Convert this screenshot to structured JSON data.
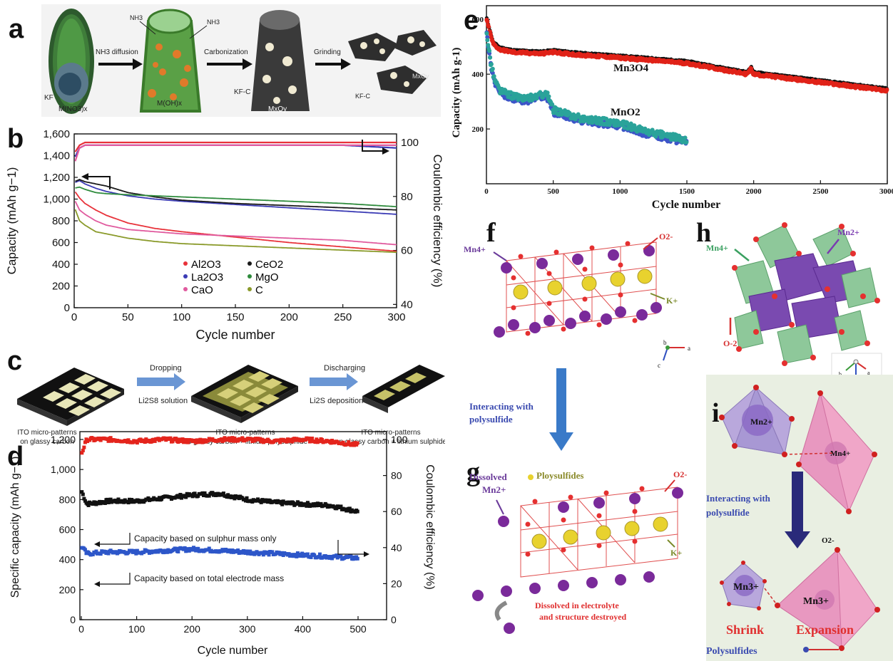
{
  "panel_labels": {
    "a": "a",
    "b": "b",
    "c": "c",
    "d": "d",
    "e": "e",
    "f": "f",
    "g": "g",
    "h": "h",
    "i": "i"
  },
  "colors": {
    "al2o3": "#e8323a",
    "la2o3": "#3b3bb5",
    "cao": "#e05a9e",
    "ceo2": "#1a1a1a",
    "mgo": "#2e8b3c",
    "c": "#8a9a2a",
    "mn3o4_red": "#e02218",
    "mn3o4_black": "#111111",
    "mno2_teal": "#2aa39a",
    "mno2_blue": "#3d55c8",
    "d_red": "#e4241c",
    "d_black": "#111111",
    "d_blue": "#2d56c9"
  },
  "panel_a": {
    "labels": {
      "nh3_diffusion": "NH3 diffusion",
      "carbonization": "Carbonization",
      "grinding": "Grinding",
      "nh3_1": "NH3",
      "nh3_2": "NH3",
      "kf": "KF",
      "mno3": "M(NO3)x",
      "moh": "M(OH)x",
      "kfc": "KF-C",
      "mxoy": "MxOy",
      "kfc2": "KF-C",
      "mox": "MxOy"
    }
  },
  "panel_b": {
    "ylabel_left": "Capacity (mAh g−1)",
    "ylabel_right": "Coulombic efficiency (%)",
    "xlabel": "Cycle number",
    "yticks_left": [
      "1,600",
      "1,400",
      "1,200",
      "1,000",
      "800",
      "600",
      "400",
      "200",
      "0"
    ],
    "yticks_right": [
      "100",
      "80",
      "60",
      "40"
    ],
    "xticks": [
      "0",
      "50",
      "100",
      "150",
      "200",
      "250",
      "300"
    ],
    "legend": [
      "Al2O3",
      "La2O3",
      "CaO",
      "CeO2",
      "MgO",
      "C"
    ]
  },
  "panel_c": {
    "step1": "Dropping",
    "step1_sub": "Li2S8 solution",
    "step2": "Discharging",
    "step2_sub": "Li2S deposition",
    "cap1_a": "ITO micro-patterns",
    "cap1_b": "on glassy carbon",
    "cap2_a": "ITO micro-patterns",
    "cap2_b": "on glassy carbon + lithium polysulphide",
    "cap3_a": "ITO micro-patterns",
    "cap3_b": "on glassy carbon + lithium sulphide"
  },
  "panel_d": {
    "ylabel_left": "Specific capacity (mAh g−1)",
    "ylabel_right": "Coulombic efficiency (%)",
    "xlabel": "Cycle number",
    "yticks_left": [
      "1,200",
      "1,000",
      "800",
      "600",
      "400",
      "200",
      "0"
    ],
    "yticks_right": [
      "100",
      "80",
      "60",
      "40",
      "20",
      "0"
    ],
    "xticks": [
      "0",
      "100",
      "200",
      "300",
      "400",
      "500"
    ],
    "anno1": "Capacity based on sulphur mass only",
    "anno2": "Capacity based on total electrode mass"
  },
  "panel_e": {
    "ylabel": "Capacity (mAh g-1)",
    "xlabel": "Cycle number",
    "yticks": [
      "600",
      "400",
      "200"
    ],
    "xticks": [
      "0",
      "500",
      "1000",
      "1500",
      "2000",
      "2500",
      "3000"
    ],
    "label_mn3o4": "Mn3O4",
    "label_mno2": "MnO2"
  },
  "panel_f": {
    "mn4": "Mn4+",
    "o2": "O2-",
    "k": "K+",
    "axes": {
      "a": "a",
      "b": "b",
      "c": "c"
    }
  },
  "panel_arrow": {
    "text_l1": "Interacting with",
    "text_l2": "polysulfide"
  },
  "panel_g": {
    "dissolved": "Dissolved",
    "mn2": "Mn2+",
    "ploysulfides": "Ploysulfides",
    "o2": "O2-",
    "k": "K+",
    "note_l1": "Dissolved in electrolyte",
    "note_l2": "and structure destroyed"
  },
  "panel_h": {
    "mn4": "Mn4+",
    "mn2": "Mn2+",
    "o2": "O-2",
    "axes": {
      "a": "a",
      "b": "b",
      "c": "c"
    }
  },
  "panel_i": {
    "mn2": "Mn2+",
    "mn4": "Mn4+",
    "text_l1": "Interacting with",
    "text_l2": "polysulfide",
    "o2": "O2-",
    "mn3a": "Mn3+",
    "mn3b": "Mn3+",
    "shrink": "Shrink",
    "expansion": "Expansion",
    "polysulfides": "Polysulfides"
  },
  "chart_data": [
    {
      "panel": "b",
      "type": "line",
      "xlabel": "Cycle number",
      "ylabel": "Capacity (mAh g−1)",
      "ylabel_right": "Coulombic efficiency (%)",
      "xlim": [
        0,
        300
      ],
      "ylim": [
        0,
        1600
      ],
      "ylim_right": [
        40,
        100
      ],
      "x": [
        0,
        5,
        10,
        20,
        30,
        50,
        75,
        100,
        150,
        200,
        250,
        300
      ],
      "series": [
        {
          "name": "Al2O3",
          "values": [
            1080,
            1010,
            960,
            900,
            850,
            780,
            730,
            700,
            650,
            600,
            560,
            520
          ]
        },
        {
          "name": "La2O3",
          "values": [
            1150,
            1170,
            1140,
            1100,
            1070,
            1030,
            1000,
            980,
            950,
            920,
            890,
            860
          ]
        },
        {
          "name": "CaO",
          "values": [
            1000,
            900,
            860,
            800,
            760,
            720,
            700,
            680,
            660,
            640,
            620,
            580
          ]
        },
        {
          "name": "CeO2",
          "values": [
            1160,
            1180,
            1160,
            1140,
            1120,
            1060,
            1020,
            990,
            960,
            940,
            920,
            900
          ]
        },
        {
          "name": "MgO",
          "values": [
            1100,
            1110,
            1090,
            1060,
            1050,
            1040,
            1030,
            1020,
            1000,
            980,
            960,
            930
          ]
        },
        {
          "name": "C",
          "values": [
            930,
            800,
            760,
            700,
            680,
            640,
            610,
            590,
            570,
            550,
            530,
            510
          ]
        }
      ],
      "ce_series": [
        {
          "name": "Al2O3",
          "values": [
            96,
            99,
            100,
            100,
            100,
            100,
            100,
            100,
            100,
            100,
            100,
            100
          ]
        },
        {
          "name": "La2O3",
          "values": [
            94,
            98,
            99,
            99,
            99,
            99,
            99,
            99,
            99,
            99,
            99,
            98
          ]
        },
        {
          "name": "CaO",
          "values": [
            92,
            98,
            99,
            99,
            99,
            99,
            99,
            99,
            99,
            99,
            99,
            99
          ]
        }
      ]
    },
    {
      "panel": "d",
      "type": "scatter",
      "xlabel": "Cycle number",
      "ylabel": "Specific capacity (mAh g−1)",
      "ylabel_right": "Coulombic efficiency (%)",
      "xlim": [
        0,
        500
      ],
      "ylim": [
        0,
        1200
      ],
      "ylim_right": [
        0,
        100
      ],
      "x": [
        0,
        10,
        50,
        100,
        150,
        200,
        250,
        300,
        350,
        400,
        450,
        500
      ],
      "series": [
        {
          "name": "Capacity based on sulphur mass only",
          "values": [
            860,
            770,
            790,
            790,
            810,
            830,
            840,
            800,
            780,
            770,
            760,
            720
          ]
        },
        {
          "name": "Capacity based on total electrode mass",
          "values": [
            490,
            440,
            450,
            450,
            460,
            470,
            460,
            450,
            440,
            430,
            420,
            410
          ]
        }
      ],
      "ce_series": [
        {
          "values": [
            92,
            100,
            100,
            99,
            100,
            99,
            100,
            100,
            99,
            100,
            99,
            97
          ]
        }
      ]
    },
    {
      "panel": "e",
      "type": "scatter",
      "xlabel": "Cycle number",
      "ylabel": "Capacity (mAh g-1)",
      "xlim": [
        0,
        3000
      ],
      "ylim": [
        0,
        650
      ],
      "series": [
        {
          "name": "Mn3O4",
          "x": [
            0,
            50,
            100,
            200,
            400,
            500,
            700,
            1000,
            1500,
            1950,
            1980,
            2000,
            2500,
            3000
          ],
          "values": [
            600,
            510,
            490,
            480,
            475,
            480,
            470,
            460,
            440,
            400,
            420,
            400,
            370,
            340
          ]
        },
        {
          "name": "MnO2",
          "x": [
            0,
            30,
            60,
            100,
            200,
            300,
            450,
            500,
            700,
            1000,
            1200,
            1500
          ],
          "values": [
            560,
            450,
            380,
            340,
            320,
            310,
            330,
            270,
            240,
            220,
            190,
            160
          ]
        }
      ]
    }
  ]
}
